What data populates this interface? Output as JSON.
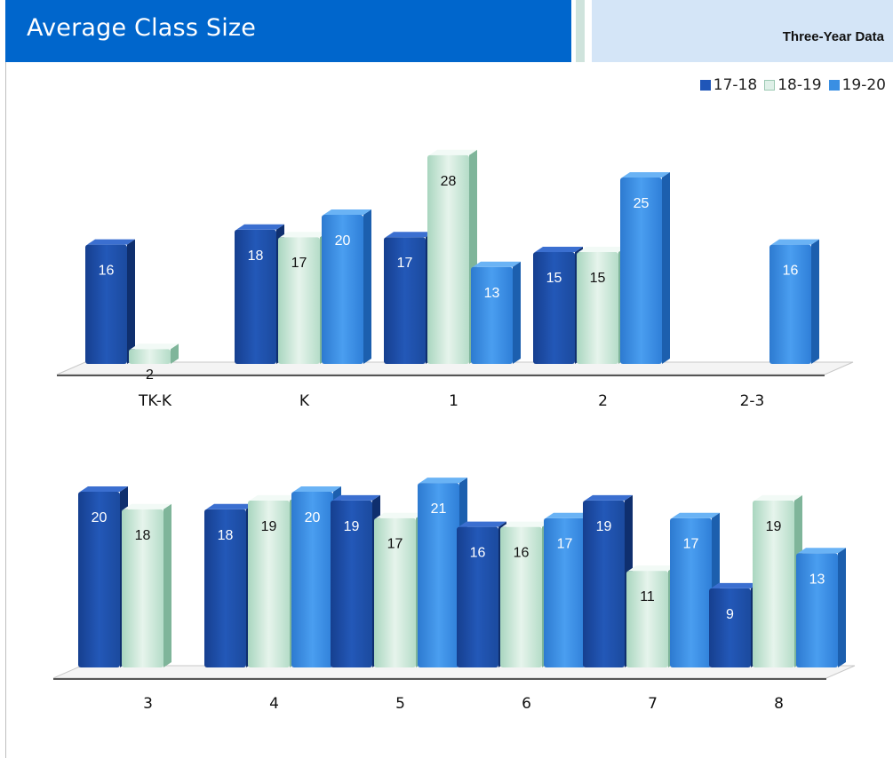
{
  "header": {
    "title": "Average Class Size",
    "subtitle": "Three-Year Data"
  },
  "legend": {
    "items": [
      {
        "label": "17-18",
        "color": "#1f56b8"
      },
      {
        "label": "18-19",
        "color": "#dff0e8"
      },
      {
        "label": "19-20",
        "color": "#3a8fe3"
      }
    ]
  },
  "chart_data": [
    {
      "type": "bar",
      "categories": [
        "TK-K",
        "K",
        "1",
        "2",
        "2-3"
      ],
      "series": [
        {
          "name": "17-18",
          "values": [
            16,
            18,
            17,
            15,
            null
          ]
        },
        {
          "name": "18-19",
          "values": [
            2,
            17,
            28,
            15,
            null
          ]
        },
        {
          "name": "19-20",
          "values": [
            null,
            20,
            13,
            25,
            16
          ]
        }
      ],
      "ylim": [
        0,
        30
      ],
      "grid": false,
      "legend_position": "top-right"
    },
    {
      "type": "bar",
      "categories": [
        "3",
        "4",
        "5",
        "6",
        "7",
        "8"
      ],
      "series": [
        {
          "name": "17-18",
          "values": [
            20,
            18,
            19,
            16,
            19,
            9
          ]
        },
        {
          "name": "18-19",
          "values": [
            18,
            19,
            17,
            16,
            11,
            19
          ]
        },
        {
          "name": "19-20",
          "values": [
            null,
            20,
            21,
            17,
            17,
            13
          ]
        }
      ],
      "ylim": [
        0,
        30
      ],
      "grid": false,
      "legend_position": "top-right"
    }
  ]
}
